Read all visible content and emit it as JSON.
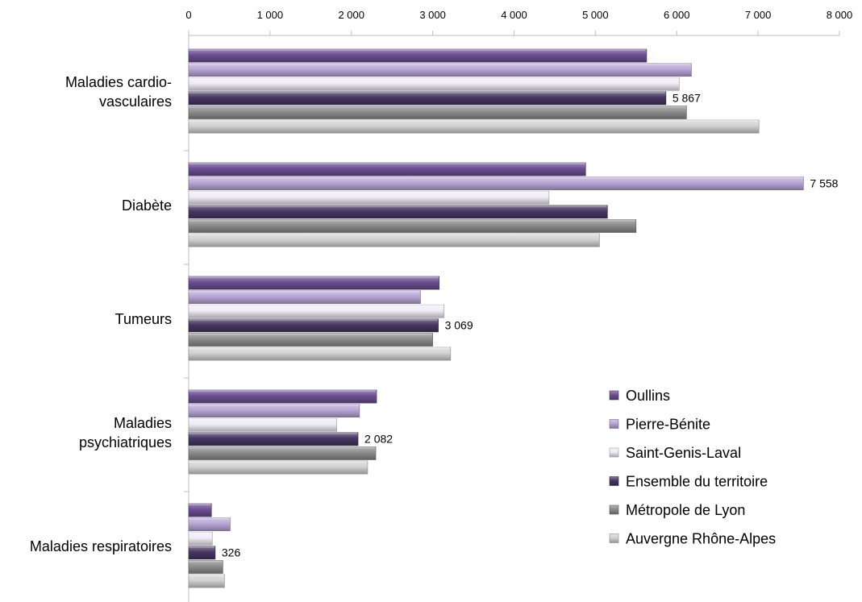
{
  "chart_data": {
    "type": "bar",
    "orientation": "horizontal",
    "grid": false,
    "legend_position": "right",
    "xlim": [
      0,
      8000
    ],
    "x_ticks": [
      "0",
      "1 000",
      "2 000",
      "3 000",
      "4 000",
      "5 000",
      "6 000",
      "7 000",
      "8 000"
    ],
    "x_tick_values": [
      0,
      1000,
      2000,
      3000,
      4000,
      5000,
      6000,
      7000,
      8000
    ],
    "categories": [
      [
        "Maladies cardio-",
        "vasculaires"
      ],
      [
        "Diabète"
      ],
      [
        "Tumeurs"
      ],
      [
        "Maladies",
        "psychiatriques"
      ],
      [
        "Maladies respiratoires"
      ]
    ],
    "series": [
      {
        "name": "Oullins",
        "values": [
          5630,
          4880,
          3080,
          2310,
          280
        ],
        "color": "#6b4e91"
      },
      {
        "name": "Pierre-Bénite",
        "values": [
          6180,
          7558,
          2850,
          2100,
          510
        ],
        "color": "#b8a6d6"
      },
      {
        "name": "Saint-Genis-Laval",
        "values": [
          6030,
          4430,
          3140,
          1820,
          290
        ],
        "color": "#f0ecf6"
      },
      {
        "name": "Ensemble du territoire",
        "values": [
          5867,
          5148,
          3069,
          2082,
          326
        ],
        "color": "#463661"
      },
      {
        "name": "Métropole de Lyon",
        "values": [
          6120,
          5500,
          3000,
          2300,
          420
        ],
        "color": "#8c8c8c"
      },
      {
        "name": "Auvergne Rhône-Alpes",
        "values": [
          7010,
          5050,
          3220,
          2200,
          440
        ],
        "color": "#d2d2d2"
      }
    ],
    "data_labels": {
      "series": "Ensemble du territoire",
      "texts": [
        "5 867",
        "7 558",
        "3 069",
        "2 082",
        "326"
      ],
      "series_index": [
        3,
        1,
        3,
        3,
        3
      ]
    }
  }
}
